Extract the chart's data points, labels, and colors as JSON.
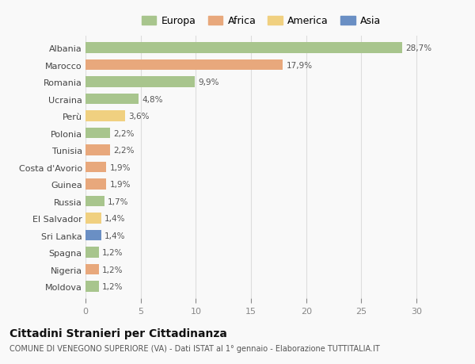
{
  "categories": [
    "Albania",
    "Marocco",
    "Romania",
    "Ucraina",
    "Perù",
    "Polonia",
    "Tunisia",
    "Costa d'Avorio",
    "Guinea",
    "Russia",
    "El Salvador",
    "Sri Lanka",
    "Spagna",
    "Nigeria",
    "Moldova"
  ],
  "values": [
    28.7,
    17.9,
    9.9,
    4.8,
    3.6,
    2.2,
    2.2,
    1.9,
    1.9,
    1.7,
    1.4,
    1.4,
    1.2,
    1.2,
    1.2
  ],
  "labels": [
    "28,7%",
    "17,9%",
    "9,9%",
    "4,8%",
    "3,6%",
    "2,2%",
    "2,2%",
    "1,9%",
    "1,9%",
    "1,7%",
    "1,4%",
    "1,4%",
    "1,2%",
    "1,2%",
    "1,2%"
  ],
  "colors": [
    "#a8c58d",
    "#e8a87c",
    "#a8c58d",
    "#a8c58d",
    "#f0d080",
    "#a8c58d",
    "#e8a87c",
    "#e8a87c",
    "#e8a87c",
    "#a8c58d",
    "#f0d080",
    "#6a8fc4",
    "#a8c58d",
    "#e8a87c",
    "#a8c58d"
  ],
  "legend_labels": [
    "Europa",
    "Africa",
    "America",
    "Asia"
  ],
  "legend_colors": [
    "#a8c58d",
    "#e8a87c",
    "#f0d080",
    "#6a8fc4"
  ],
  "title": "Cittadini Stranieri per Cittadinanza",
  "subtitle": "COMUNE DI VENEGONO SUPERIORE (VA) - Dati ISTAT al 1° gennaio - Elaborazione TUTTITALIA.IT",
  "xlim": [
    0,
    31
  ],
  "xticks": [
    0,
    5,
    10,
    15,
    20,
    25,
    30
  ],
  "background_color": "#f9f9f9",
  "bar_height": 0.62,
  "label_fontsize": 7.5,
  "title_fontsize": 10,
  "subtitle_fontsize": 7,
  "tick_fontsize": 8,
  "legend_fontsize": 9
}
